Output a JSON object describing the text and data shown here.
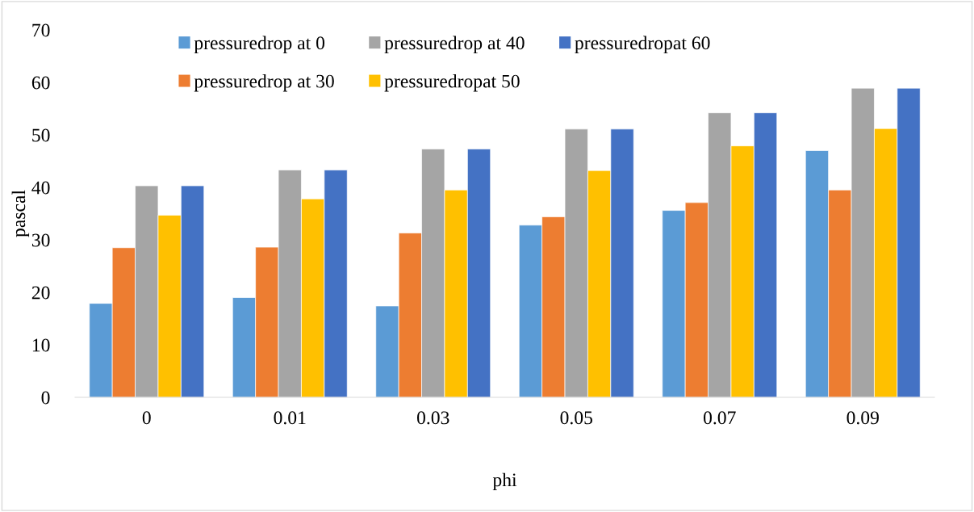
{
  "chart_data": {
    "type": "bar",
    "xlabel": "phi",
    "ylabel": "pascal",
    "categories": [
      "0",
      "0.01",
      "0.03",
      "0.05",
      "0.07",
      "0.09"
    ],
    "series": [
      {
        "name": "pressuredrop at 0",
        "color": "#5b9bd5",
        "values": [
          17.9,
          19.0,
          17.4,
          32.8,
          35.6,
          47.0
        ]
      },
      {
        "name": "pressuredrop at 30",
        "color": "#ed7d31",
        "values": [
          28.5,
          28.6,
          31.3,
          34.4,
          37.1,
          39.5
        ]
      },
      {
        "name": "pressuredrop at 40",
        "color": "#a5a5a5",
        "values": [
          40.3,
          43.3,
          47.3,
          51.1,
          54.2,
          58.9
        ]
      },
      {
        "name": "pressuredropat 50",
        "color": "#ffc000",
        "values": [
          34.7,
          37.8,
          39.5,
          43.2,
          47.9,
          51.2
        ]
      },
      {
        "name": "pressuredropat 60",
        "color": "#4472c4",
        "values": [
          40.3,
          43.3,
          47.3,
          51.1,
          54.2,
          58.9
        ]
      }
    ],
    "ylim": [
      0,
      70
    ],
    "yticks": [
      0,
      10,
      20,
      30,
      40,
      50,
      60,
      70
    ],
    "grid": false,
    "legend": "top"
  }
}
